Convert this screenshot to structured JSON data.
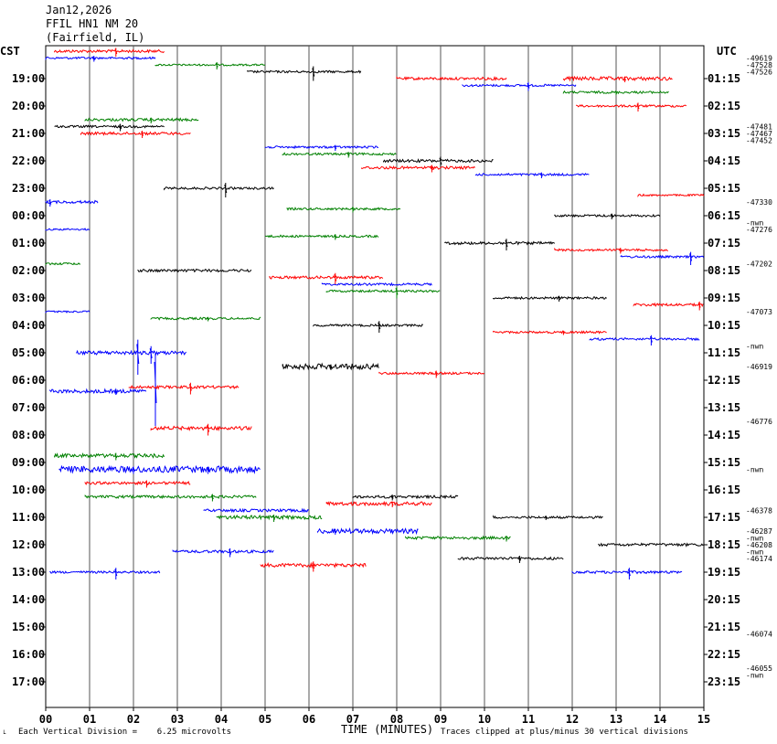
{
  "header": {
    "date": "Jan12,2026",
    "station": "FFIL HN1 NM 20",
    "location": "(Fairfield, IL)",
    "left_tz": "CST",
    "right_tz": "UTC"
  },
  "footer": {
    "scale_label": "Each Vertical Division =    6.25 microvolts",
    "xlabel": "TIME (MINUTES)",
    "clip_note": "Traces clipped at plus/minus 30 vertical divisions",
    "corner_mark": "└"
  },
  "chart_data": {
    "type": "helicorder",
    "title": "FFIL HN1 NM 20",
    "xlabel": "TIME (MINUTES)",
    "xlim": [
      0,
      15
    ],
    "x_ticks": [
      "00",
      "01",
      "02",
      "03",
      "04",
      "05",
      "06",
      "07",
      "08",
      "09",
      "10",
      "11",
      "12",
      "13",
      "14",
      "15"
    ],
    "grid": "vertical lines at each minute",
    "trace_colors": [
      "#ff0000",
      "#0000ff",
      "#008000",
      "#000000"
    ],
    "rows": [
      {
        "cst": "19:00",
        "utc": "01:15"
      },
      {
        "cst": "20:00",
        "utc": "02:15"
      },
      {
        "cst": "21:00",
        "utc": "03:15"
      },
      {
        "cst": "22:00",
        "utc": "04:15"
      },
      {
        "cst": "23:00",
        "utc": "05:15"
      },
      {
        "cst": "00:00",
        "utc": "06:15"
      },
      {
        "cst": "01:00",
        "utc": "07:15"
      },
      {
        "cst": "02:00",
        "utc": "08:15"
      },
      {
        "cst": "03:00",
        "utc": "09:15"
      },
      {
        "cst": "04:00",
        "utc": "10:15"
      },
      {
        "cst": "05:00",
        "utc": "11:15"
      },
      {
        "cst": "06:00",
        "utc": "12:15"
      },
      {
        "cst": "07:00",
        "utc": "13:15"
      },
      {
        "cst": "08:00",
        "utc": "14:15"
      },
      {
        "cst": "09:00",
        "utc": "15:15"
      },
      {
        "cst": "10:00",
        "utc": "16:15"
      },
      {
        "cst": "11:00",
        "utc": "17:15"
      },
      {
        "cst": "12:00",
        "utc": "18:15"
      },
      {
        "cst": "13:00",
        "utc": "19:15"
      },
      {
        "cst": "14:00",
        "utc": "20:15"
      },
      {
        "cst": "15:00",
        "utc": "21:15"
      },
      {
        "cst": "16:00",
        "utc": "22:15"
      },
      {
        "cst": "17:00",
        "utc": "23:15"
      }
    ],
    "right_values": [
      {
        "text": "-49619",
        "row": -0.75
      },
      {
        "text": "-47528",
        "row": -0.5
      },
      {
        "text": "-47526",
        "row": -0.25
      },
      {
        "text": "-47481",
        "row": 1.75
      },
      {
        "text": "-47467",
        "row": 2.0
      },
      {
        "text": "-47452",
        "row": 2.25
      },
      {
        "text": "-47330",
        "row": 4.5
      },
      {
        "text": "-nwn",
        "row": 5.25
      },
      {
        "text": "-47276",
        "row": 5.5
      },
      {
        "text": "-47202",
        "row": 6.75
      },
      {
        "text": "-47073",
        "row": 8.5
      },
      {
        "text": "-nwn",
        "row": 9.75
      },
      {
        "text": "-46919",
        "row": 10.5
      },
      {
        "text": "-46776",
        "row": 12.5
      },
      {
        "text": "-nwn",
        "row": 14.25
      },
      {
        "text": "-46378",
        "row": 15.75
      },
      {
        "text": "-46287",
        "row": 16.5
      },
      {
        "text": "-nwn",
        "row": 16.75
      },
      {
        "text": "-46208",
        "row": 17.0
      },
      {
        "text": "-nwn",
        "row": 17.25
      },
      {
        "text": "-46174",
        "row": 17.5
      },
      {
        "text": "-46074",
        "row": 20.25
      },
      {
        "text": "-46055",
        "row": 21.5
      },
      {
        "text": "-nwn",
        "row": 21.75
      }
    ],
    "trace_segments": [
      {
        "row": -1.0,
        "color": "#ff0000",
        "start": 0.2,
        "end": 2.7,
        "amp": 1.5,
        "spikes": [
          [
            1.6,
            6
          ]
        ]
      },
      {
        "row": -0.75,
        "color": "#0000ff",
        "start": 0.0,
        "end": 2.5,
        "amp": 1.2,
        "spikes": [
          [
            1.1,
            4
          ]
        ]
      },
      {
        "row": -0.5,
        "color": "#008000",
        "start": 2.5,
        "end": 5.0,
        "amp": 1.0,
        "spikes": [
          [
            3.9,
            5
          ]
        ]
      },
      {
        "row": -0.25,
        "color": "#000000",
        "start": 4.6,
        "end": 7.2,
        "amp": 1.2,
        "spikes": [
          [
            6.1,
            10
          ]
        ]
      },
      {
        "row": 0.0,
        "color": "#ff0000",
        "start": 8.0,
        "end": 10.5,
        "amp": 1.5,
        "spikes": []
      },
      {
        "row": 0.25,
        "color": "#0000ff",
        "start": 9.5,
        "end": 12.1,
        "amp": 1.2,
        "spikes": [
          [
            11.0,
            6
          ]
        ]
      },
      {
        "row": 0.0,
        "color": "#ff0000",
        "start": 11.8,
        "end": 14.3,
        "amp": 2.0,
        "spikes": [
          [
            13.2,
            4
          ]
        ]
      },
      {
        "row": 0.5,
        "color": "#008000",
        "start": 11.8,
        "end": 14.2,
        "amp": 1.2,
        "spikes": [
          [
            13.0,
            3
          ]
        ]
      },
      {
        "row": 1.0,
        "color": "#ff0000",
        "start": 12.1,
        "end": 14.6,
        "amp": 1.2,
        "spikes": [
          [
            13.5,
            6
          ]
        ]
      },
      {
        "row": 1.5,
        "color": "#008000",
        "start": 0.9,
        "end": 3.5,
        "amp": 1.5,
        "spikes": [
          [
            2.4,
            4
          ]
        ]
      },
      {
        "row": 1.75,
        "color": "#000000",
        "start": 0.2,
        "end": 2.7,
        "amp": 1.2,
        "spikes": [
          [
            1.7,
            5
          ]
        ]
      },
      {
        "row": 2.0,
        "color": "#ff0000",
        "start": 0.8,
        "end": 3.3,
        "amp": 1.5,
        "spikes": [
          [
            2.2,
            5
          ]
        ]
      },
      {
        "row": 2.5,
        "color": "#0000ff",
        "start": 5.0,
        "end": 7.6,
        "amp": 1.2,
        "spikes": [
          [
            6.6,
            4
          ]
        ]
      },
      {
        "row": 2.75,
        "color": "#008000",
        "start": 5.4,
        "end": 8.0,
        "amp": 1.2,
        "spikes": [
          [
            6.9,
            4
          ]
        ]
      },
      {
        "row": 3.0,
        "color": "#000000",
        "start": 7.7,
        "end": 10.2,
        "amp": 1.5,
        "spikes": [
          [
            9.0,
            8
          ]
        ]
      },
      {
        "row": 3.25,
        "color": "#ff0000",
        "start": 7.2,
        "end": 9.8,
        "amp": 1.5,
        "spikes": [
          [
            8.8,
            5
          ]
        ]
      },
      {
        "row": 3.5,
        "color": "#0000ff",
        "start": 9.8,
        "end": 12.4,
        "amp": 1.2,
        "spikes": [
          [
            11.3,
            4
          ]
        ]
      },
      {
        "row": 4.0,
        "color": "#000000",
        "start": 2.7,
        "end": 5.2,
        "amp": 1.2,
        "spikes": [
          [
            4.1,
            10
          ]
        ]
      },
      {
        "row": 4.25,
        "color": "#ff0000",
        "start": 13.5,
        "end": 15.0,
        "amp": 1.0,
        "spikes": []
      },
      {
        "row": 4.5,
        "color": "#0000ff",
        "start": 0.0,
        "end": 1.2,
        "amp": 1.5,
        "spikes": [
          [
            0.1,
            5
          ]
        ]
      },
      {
        "row": 4.75,
        "color": "#008000",
        "start": 5.5,
        "end": 8.1,
        "amp": 1.2,
        "spikes": [
          [
            7.0,
            4
          ]
        ]
      },
      {
        "row": 5.0,
        "color": "#000000",
        "start": 11.6,
        "end": 14.0,
        "amp": 1.2,
        "spikes": [
          [
            12.9,
            4
          ]
        ]
      },
      {
        "row": 5.5,
        "color": "#0000ff",
        "start": 0.0,
        "end": 1.0,
        "amp": 1.0,
        "spikes": []
      },
      {
        "row": 5.75,
        "color": "#008000",
        "start": 5.0,
        "end": 7.6,
        "amp": 1.2,
        "spikes": [
          [
            6.6,
            4
          ]
        ]
      },
      {
        "row": 6.0,
        "color": "#000000",
        "start": 9.1,
        "end": 11.6,
        "amp": 1.5,
        "spikes": [
          [
            10.5,
            8
          ]
        ]
      },
      {
        "row": 6.25,
        "color": "#ff0000",
        "start": 11.6,
        "end": 14.2,
        "amp": 1.2,
        "spikes": [
          [
            13.1,
            4
          ]
        ]
      },
      {
        "row": 6.5,
        "color": "#0000ff",
        "start": 13.1,
        "end": 15.0,
        "amp": 1.2,
        "spikes": [
          [
            14.7,
            9
          ]
        ]
      },
      {
        "row": 6.75,
        "color": "#008000",
        "start": 0.0,
        "end": 0.8,
        "amp": 1.2,
        "spikes": []
      },
      {
        "row": 7.0,
        "color": "#000000",
        "start": 2.1,
        "end": 4.7,
        "amp": 1.5,
        "spikes": []
      },
      {
        "row": 7.25,
        "color": "#ff0000",
        "start": 5.1,
        "end": 7.7,
        "amp": 1.5,
        "spikes": [
          [
            6.6,
            8
          ]
        ]
      },
      {
        "row": 7.5,
        "color": "#0000ff",
        "start": 6.3,
        "end": 8.8,
        "amp": 1.2,
        "spikes": []
      },
      {
        "row": 7.75,
        "color": "#008000",
        "start": 6.4,
        "end": 9.0,
        "amp": 1.2,
        "spikes": [
          [
            8.0,
            8
          ]
        ]
      },
      {
        "row": 8.0,
        "color": "#000000",
        "start": 10.2,
        "end": 12.8,
        "amp": 1.2,
        "spikes": [
          [
            11.7,
            4
          ]
        ]
      },
      {
        "row": 8.25,
        "color": "#ff0000",
        "start": 13.4,
        "end": 15.0,
        "amp": 1.5,
        "spikes": [
          [
            14.9,
            6
          ]
        ]
      },
      {
        "row": 8.5,
        "color": "#0000ff",
        "start": 0.0,
        "end": 1.0,
        "amp": 1.0,
        "spikes": []
      },
      {
        "row": 8.75,
        "color": "#008000",
        "start": 2.4,
        "end": 4.9,
        "amp": 1.2,
        "spikes": [
          [
            3.7,
            3
          ]
        ]
      },
      {
        "row": 9.0,
        "color": "#000000",
        "start": 6.1,
        "end": 8.6,
        "amp": 1.2,
        "spikes": [
          [
            7.6,
            8
          ]
        ]
      },
      {
        "row": 9.25,
        "color": "#ff0000",
        "start": 10.2,
        "end": 12.8,
        "amp": 1.2,
        "spikes": [
          [
            11.8,
            3
          ]
        ]
      },
      {
        "row": 9.5,
        "color": "#0000ff",
        "start": 12.4,
        "end": 14.9,
        "amp": 1.2,
        "spikes": [
          [
            13.8,
            7
          ]
        ]
      },
      {
        "row": 10.0,
        "color": "#0000ff",
        "start": 0.7,
        "end": 3.2,
        "amp": 2.0,
        "spikes": [
          [
            2.1,
            24
          ],
          [
            2.4,
            12
          ]
        ]
      },
      {
        "row": 10.5,
        "color": "#000000",
        "start": 5.4,
        "end": 7.6,
        "amp": 3.0,
        "spikes": [
          [
            6.5,
            4
          ]
        ]
      },
      {
        "row": 10.75,
        "color": "#ff0000",
        "start": 7.6,
        "end": 10.0,
        "amp": 1.2,
        "spikes": [
          [
            8.9,
            5
          ]
        ]
      },
      {
        "row": 11.0,
        "color": "#0000ff",
        "start": 2.5,
        "end": 2.5,
        "amp": 0.0,
        "spikes": [
          [
            2.5,
            50
          ]
        ]
      },
      {
        "row": 11.25,
        "color": "#ff0000",
        "start": 1.9,
        "end": 4.4,
        "amp": 1.5,
        "spikes": [
          [
            3.3,
            8
          ]
        ]
      },
      {
        "row": 11.4,
        "color": "#0000ff",
        "start": 0.1,
        "end": 2.3,
        "amp": 2.0,
        "spikes": [
          [
            1.6,
            4
          ]
        ]
      },
      {
        "row": 12.75,
        "color": "#ff0000",
        "start": 2.4,
        "end": 4.7,
        "amp": 2.0,
        "spikes": [
          [
            3.7,
            8
          ]
        ]
      },
      {
        "row": 13.75,
        "color": "#008000",
        "start": 0.2,
        "end": 2.7,
        "amp": 2.0,
        "spikes": [
          [
            1.6,
            5
          ]
        ]
      },
      {
        "row": 14.25,
        "color": "#0000ff",
        "start": 0.3,
        "end": 4.9,
        "amp": 3.5,
        "spikes": [
          [
            3.7,
            5
          ],
          [
            2.0,
            5
          ]
        ]
      },
      {
        "row": 14.75,
        "color": "#ff0000",
        "start": 0.9,
        "end": 3.3,
        "amp": 1.5,
        "spikes": [
          [
            2.3,
            5
          ]
        ]
      },
      {
        "row": 15.25,
        "color": "#008000",
        "start": 0.9,
        "end": 4.8,
        "amp": 1.5,
        "spikes": [
          [
            3.8,
            5
          ]
        ]
      },
      {
        "row": 15.5,
        "color": "#ff0000",
        "start": 6.4,
        "end": 8.8,
        "amp": 2.0,
        "spikes": [
          [
            7.9,
            4
          ]
        ]
      },
      {
        "row": 15.25,
        "color": "#000000",
        "start": 7.0,
        "end": 9.4,
        "amp": 1.5,
        "spikes": [
          [
            7.9,
            4
          ]
        ]
      },
      {
        "row": 15.75,
        "color": "#0000ff",
        "start": 3.6,
        "end": 6.0,
        "amp": 1.5,
        "spikes": []
      },
      {
        "row": 16.0,
        "color": "#008000",
        "start": 3.9,
        "end": 6.3,
        "amp": 2.0,
        "spikes": [
          [
            5.2,
            5
          ]
        ]
      },
      {
        "row": 16.5,
        "color": "#0000ff",
        "start": 6.2,
        "end": 8.5,
        "amp": 2.5,
        "spikes": [
          [
            6.6,
            4
          ]
        ]
      },
      {
        "row": 16.75,
        "color": "#008000",
        "start": 8.2,
        "end": 10.6,
        "amp": 1.5,
        "spikes": [
          [
            10.5,
            4
          ]
        ]
      },
      {
        "row": 16.0,
        "color": "#000000",
        "start": 10.2,
        "end": 12.7,
        "amp": 1.2,
        "spikes": [
          [
            11.4,
            3
          ]
        ]
      },
      {
        "row": 17.0,
        "color": "#000000",
        "start": 12.6,
        "end": 15.0,
        "amp": 1.5,
        "spikes": []
      },
      {
        "row": 17.25,
        "color": "#0000ff",
        "start": 2.9,
        "end": 5.2,
        "amp": 1.5,
        "spikes": [
          [
            4.2,
            6
          ]
        ]
      },
      {
        "row": 17.75,
        "color": "#ff0000",
        "start": 4.9,
        "end": 7.3,
        "amp": 2.0,
        "spikes": [
          [
            6.1,
            7
          ]
        ]
      },
      {
        "row": 17.5,
        "color": "#000000",
        "start": 9.4,
        "end": 11.8,
        "amp": 1.5,
        "spikes": [
          [
            10.8,
            5
          ]
        ]
      },
      {
        "row": 18.0,
        "color": "#0000ff",
        "start": 0.1,
        "end": 2.6,
        "amp": 1.2,
        "spikes": [
          [
            1.6,
            8
          ]
        ]
      },
      {
        "row": 18.0,
        "color": "#0000ff",
        "start": 12.0,
        "end": 14.5,
        "amp": 1.5,
        "spikes": [
          [
            13.3,
            8
          ]
        ]
      }
    ]
  }
}
